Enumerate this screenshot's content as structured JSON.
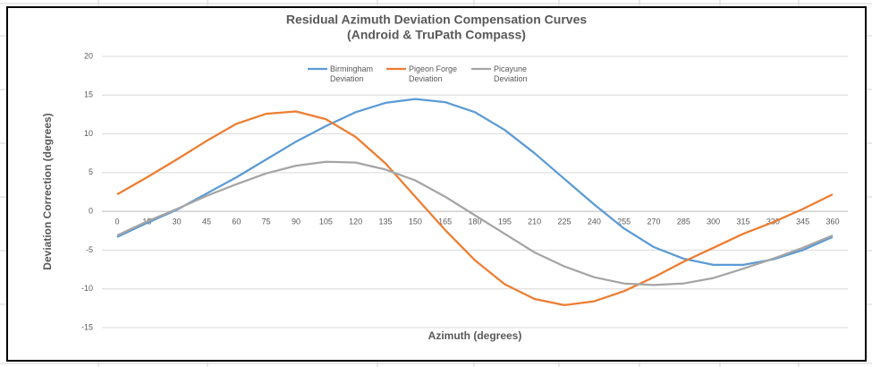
{
  "chart_data": {
    "type": "line",
    "title": "Residual Azimuth Deviation Compensation Curves",
    "subtitle": "(Android & TruPath Compass)",
    "x_label": "Azimuth (degrees)",
    "y_label": "Deviation Correction (degrees)",
    "categories": [
      "0",
      "15",
      "30",
      "45",
      "60",
      "75",
      "90",
      "105",
      "120",
      "135",
      "150",
      "165",
      "180",
      "195",
      "210",
      "225",
      "240",
      "255",
      "270",
      "285",
      "300",
      "315",
      "330",
      "345",
      "360"
    ],
    "series": [
      {
        "name": "Birmingham Deviation",
        "color": "#5b9bd5",
        "values": [
          -3.3,
          -1.5,
          0.2,
          2.3,
          4.4,
          6.7,
          9.0,
          11.0,
          12.8,
          14.0,
          14.5,
          14.1,
          12.8,
          10.5,
          7.5,
          4.2,
          0.9,
          -2.2,
          -4.6,
          -6.1,
          -6.9,
          -6.9,
          -6.2,
          -5.0,
          -3.3
        ]
      },
      {
        "name": "Pigeon Forge Deviation",
        "color": "#ed7d31",
        "values": [
          2.2,
          4.4,
          6.7,
          9.1,
          11.3,
          12.6,
          12.9,
          11.9,
          9.6,
          6.2,
          1.9,
          -2.4,
          -6.3,
          -9.4,
          -11.3,
          -12.1,
          -11.6,
          -10.3,
          -8.5,
          -6.5,
          -4.7,
          -2.9,
          -1.4,
          0.3,
          2.2
        ]
      },
      {
        "name": "Picayune Deviation",
        "color": "#a5a5a5",
        "values": [
          -3.1,
          -1.3,
          0.3,
          2.0,
          3.5,
          4.9,
          5.9,
          6.4,
          6.3,
          5.4,
          4.0,
          1.9,
          -0.5,
          -2.9,
          -5.3,
          -7.1,
          -8.5,
          -9.3,
          -9.5,
          -9.3,
          -8.6,
          -7.4,
          -6.1,
          -4.7,
          -3.1
        ]
      }
    ],
    "ylim": [
      -15,
      20
    ],
    "yticks": [
      -15,
      -10,
      -5,
      0,
      5,
      10,
      15,
      20
    ],
    "grid": true
  }
}
